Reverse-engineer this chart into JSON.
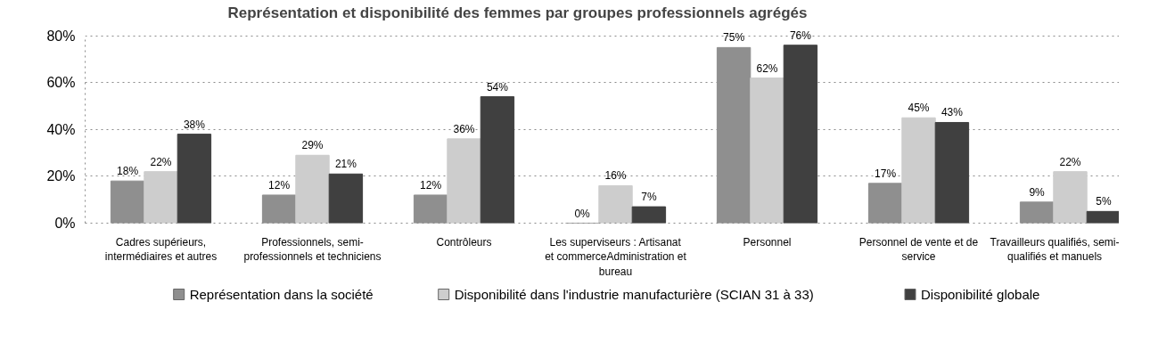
{
  "chart_data": {
    "type": "bar",
    "title": "Représentation et disponibilité des femmes par groupes professionnels agrégés",
    "categories": [
      "Cadres supérieurs, intermédiaires et autres",
      "Professionnels, semi-professionnels et techniciens",
      "Contrôleurs",
      "Les superviseurs : Artisanat et commerceAdministration et bureau",
      "Personnel",
      "Personnel de vente et de service",
      "Travailleurs qualifiés, semi-qualifiés et manuels"
    ],
    "series": [
      {
        "name": "Représentation dans la société",
        "color": "#8f8f8f",
        "values": [
          18,
          12,
          12,
          0,
          75,
          17,
          9
        ],
        "value_labels": [
          "18%",
          "12%",
          "12%",
          "0%",
          "75%",
          "17%",
          "9%"
        ]
      },
      {
        "name": "Disponibilité dans l'industrie manufacturière (SCIAN 31 à 33)",
        "color": "#cdcdcd",
        "values": [
          22,
          29,
          36,
          16,
          62,
          45,
          22
        ],
        "value_labels": [
          "22%",
          "29%",
          "36%",
          "16%",
          "62%",
          "45%",
          "22%"
        ]
      },
      {
        "name": "Disponibilité globale",
        "color": "#404040",
        "values": [
          38,
          21,
          54,
          7,
          76,
          43,
          5
        ],
        "value_labels": [
          "38%",
          "21%",
          "54%",
          "7%",
          "76%",
          "43%",
          "5%"
        ]
      }
    ],
    "ylim": [
      0,
      80
    ],
    "yticks": [
      {
        "value": 0,
        "label": "0%"
      },
      {
        "value": 20,
        "label": "20%"
      },
      {
        "value": 40,
        "label": "40%"
      },
      {
        "value": 60,
        "label": "60%"
      },
      {
        "value": 80,
        "label": "80%"
      }
    ],
    "grid": "y",
    "legend": "bottom"
  }
}
